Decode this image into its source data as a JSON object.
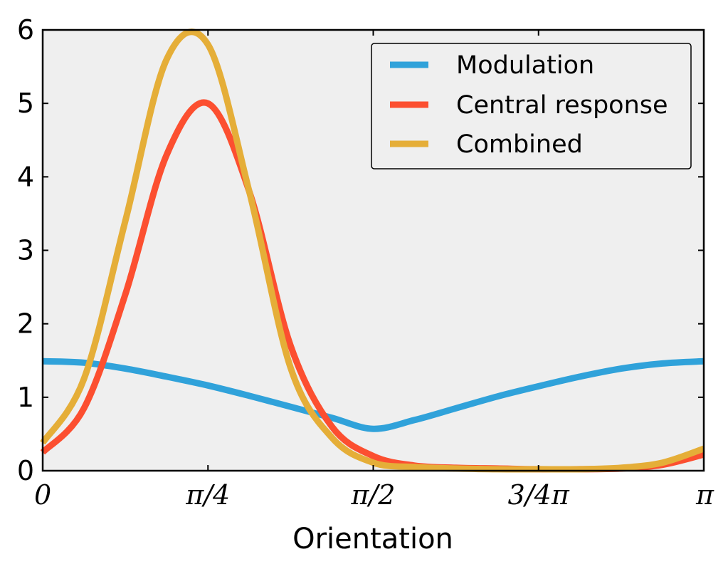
{
  "chart_data": {
    "type": "line",
    "xlabel": "Orientation",
    "ylabel": "",
    "xlim": [
      0,
      3.14159
    ],
    "ylim": [
      0,
      6
    ],
    "x_ticks": [
      {
        "value": 0,
        "label": "0"
      },
      {
        "value": 0.7854,
        "label": "π/4"
      },
      {
        "value": 1.5708,
        "label": "π/2"
      },
      {
        "value": 2.3562,
        "label": "3/4π"
      },
      {
        "value": 3.14159,
        "label": "π"
      }
    ],
    "y_ticks": [
      0,
      1,
      2,
      3,
      4,
      5,
      6
    ],
    "y_tick_labels": [
      "0",
      "1",
      "2",
      "3",
      "4",
      "5",
      "6"
    ],
    "grid": false,
    "background": "#efefef",
    "legend_position": "top-right",
    "x": [
      0,
      0.1963,
      0.3927,
      0.589,
      0.7854,
      0.9817,
      1.1781,
      1.3744,
      1.5708,
      1.7671,
      1.9635,
      2.1598,
      2.3562,
      2.5525,
      2.7489,
      2.9452,
      3.1416
    ],
    "series": [
      {
        "name": "Modulation",
        "color": "#30a2da",
        "values": [
          1.49,
          1.47,
          1.39,
          1.28,
          1.16,
          1.02,
          0.87,
          0.72,
          0.57,
          0.69,
          0.85,
          1.01,
          1.15,
          1.28,
          1.39,
          1.46,
          1.49
        ]
      },
      {
        "name": "Central response",
        "color": "#fc4f30",
        "values": [
          0.25,
          0.85,
          2.4,
          4.3,
          5.0,
          3.8,
          1.7,
          0.6,
          0.2,
          0.07,
          0.04,
          0.03,
          0.02,
          0.02,
          0.03,
          0.08,
          0.22
        ]
      },
      {
        "name": "Combined",
        "color": "#e5ae38",
        "values": [
          0.38,
          1.25,
          3.4,
          5.6,
          5.8,
          3.8,
          1.4,
          0.45,
          0.11,
          0.05,
          0.03,
          0.02,
          0.02,
          0.02,
          0.04,
          0.11,
          0.3
        ]
      }
    ]
  }
}
